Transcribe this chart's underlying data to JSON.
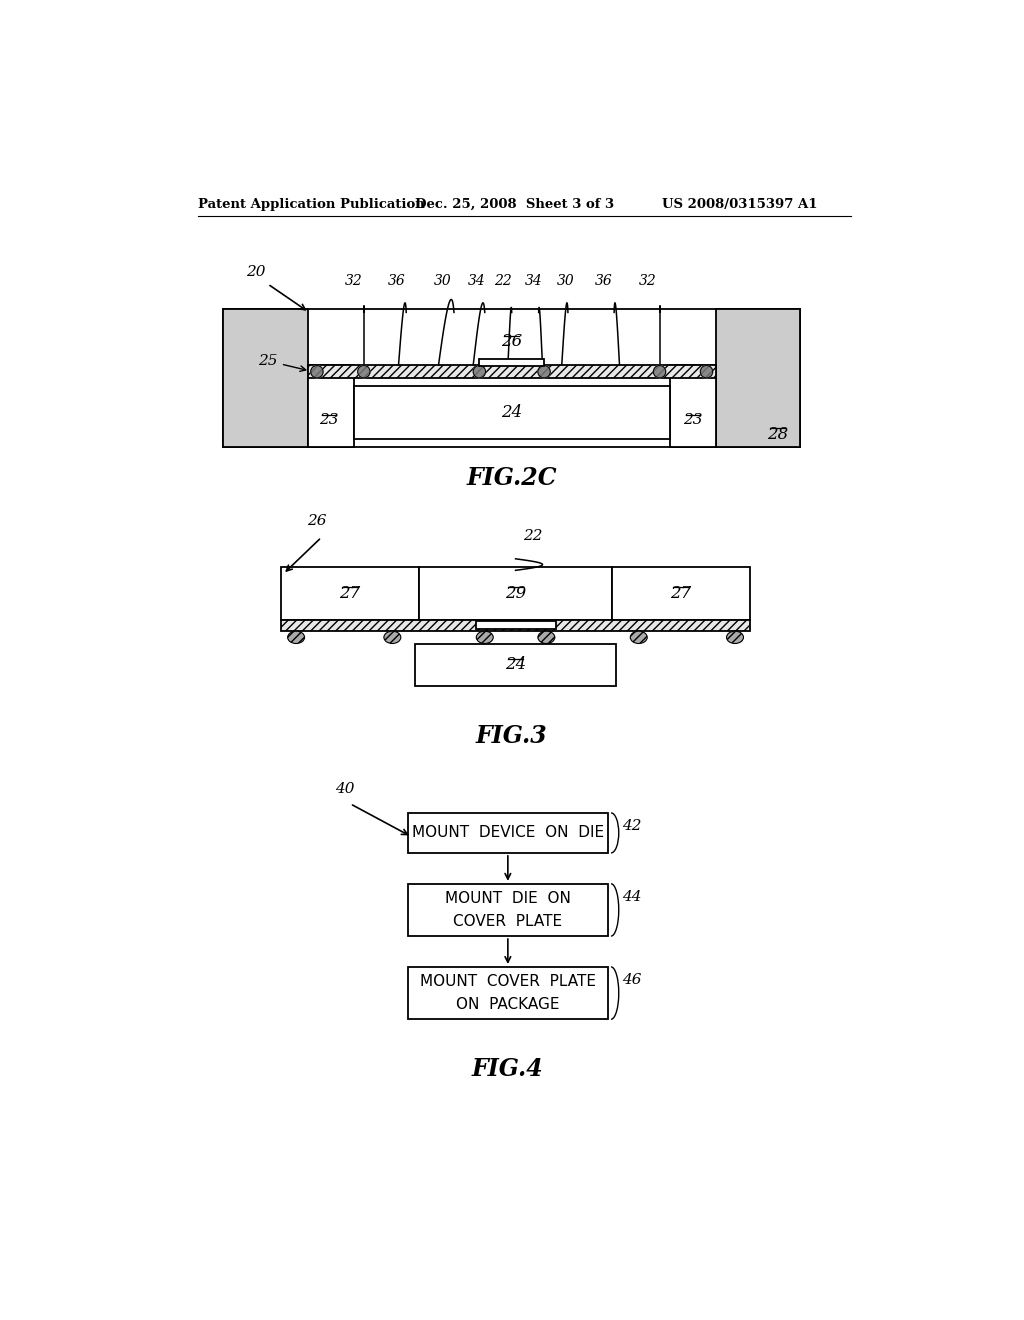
{
  "bg_color": "#ffffff",
  "text_color": "#000000",
  "header_left": "Patent Application Publication",
  "header_center": "Dec. 25, 2008  Sheet 3 of 3",
  "header_right": "US 2008/0315397 A1",
  "fig2c_label": "FIG.2C",
  "fig3_label": "FIG.3",
  "fig4_label": "FIG.4",
  "flow_box1": "MOUNT  DEVICE  ON  DIE",
  "flow_box2": "MOUNT  DIE  ON\nCOVER  PLATE",
  "flow_box3": "MOUNT  COVER  PLATE\nON  PACKAGE"
}
